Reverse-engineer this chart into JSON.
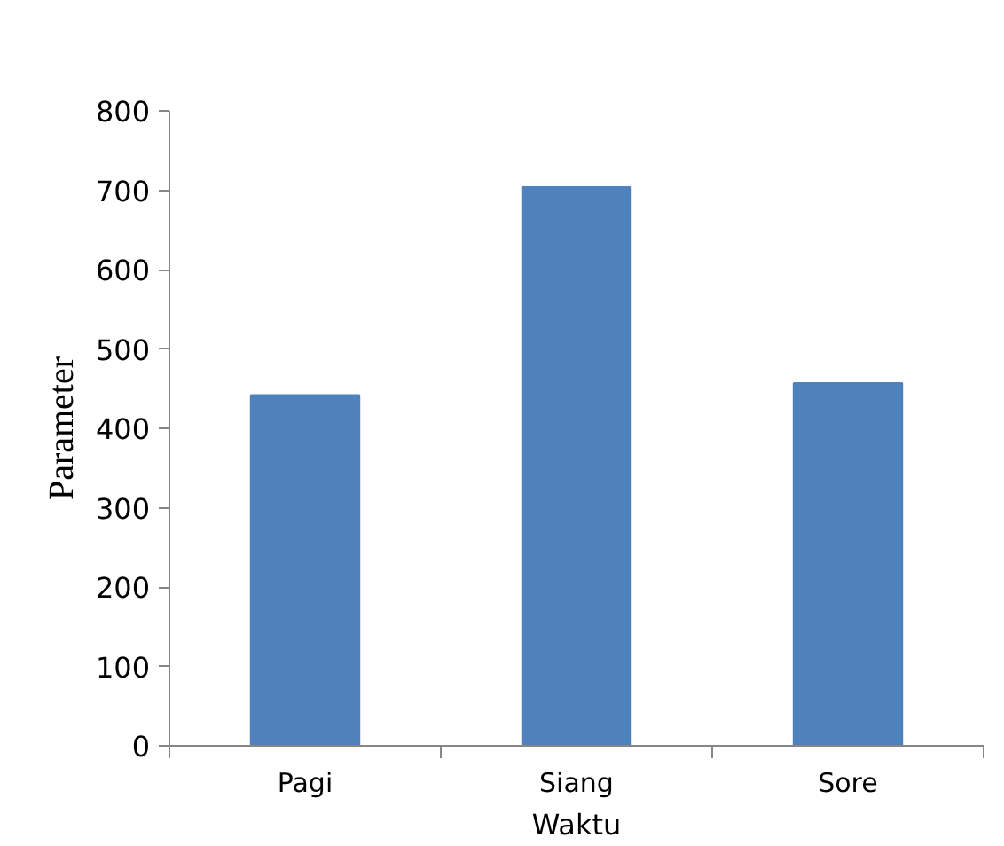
{
  "chart_data": {
    "type": "bar",
    "xlabel": "Waktu",
    "ylabel": "Parameter",
    "categories": [
      "Pagi",
      "Siang",
      "Sore"
    ],
    "values": [
      442,
      704,
      457
    ],
    "color": "#4f81bd",
    "ylim": [
      0,
      800
    ],
    "yticks": [
      0,
      100,
      200,
      300,
      400,
      500,
      600,
      700,
      800
    ],
    "grid": false
  }
}
